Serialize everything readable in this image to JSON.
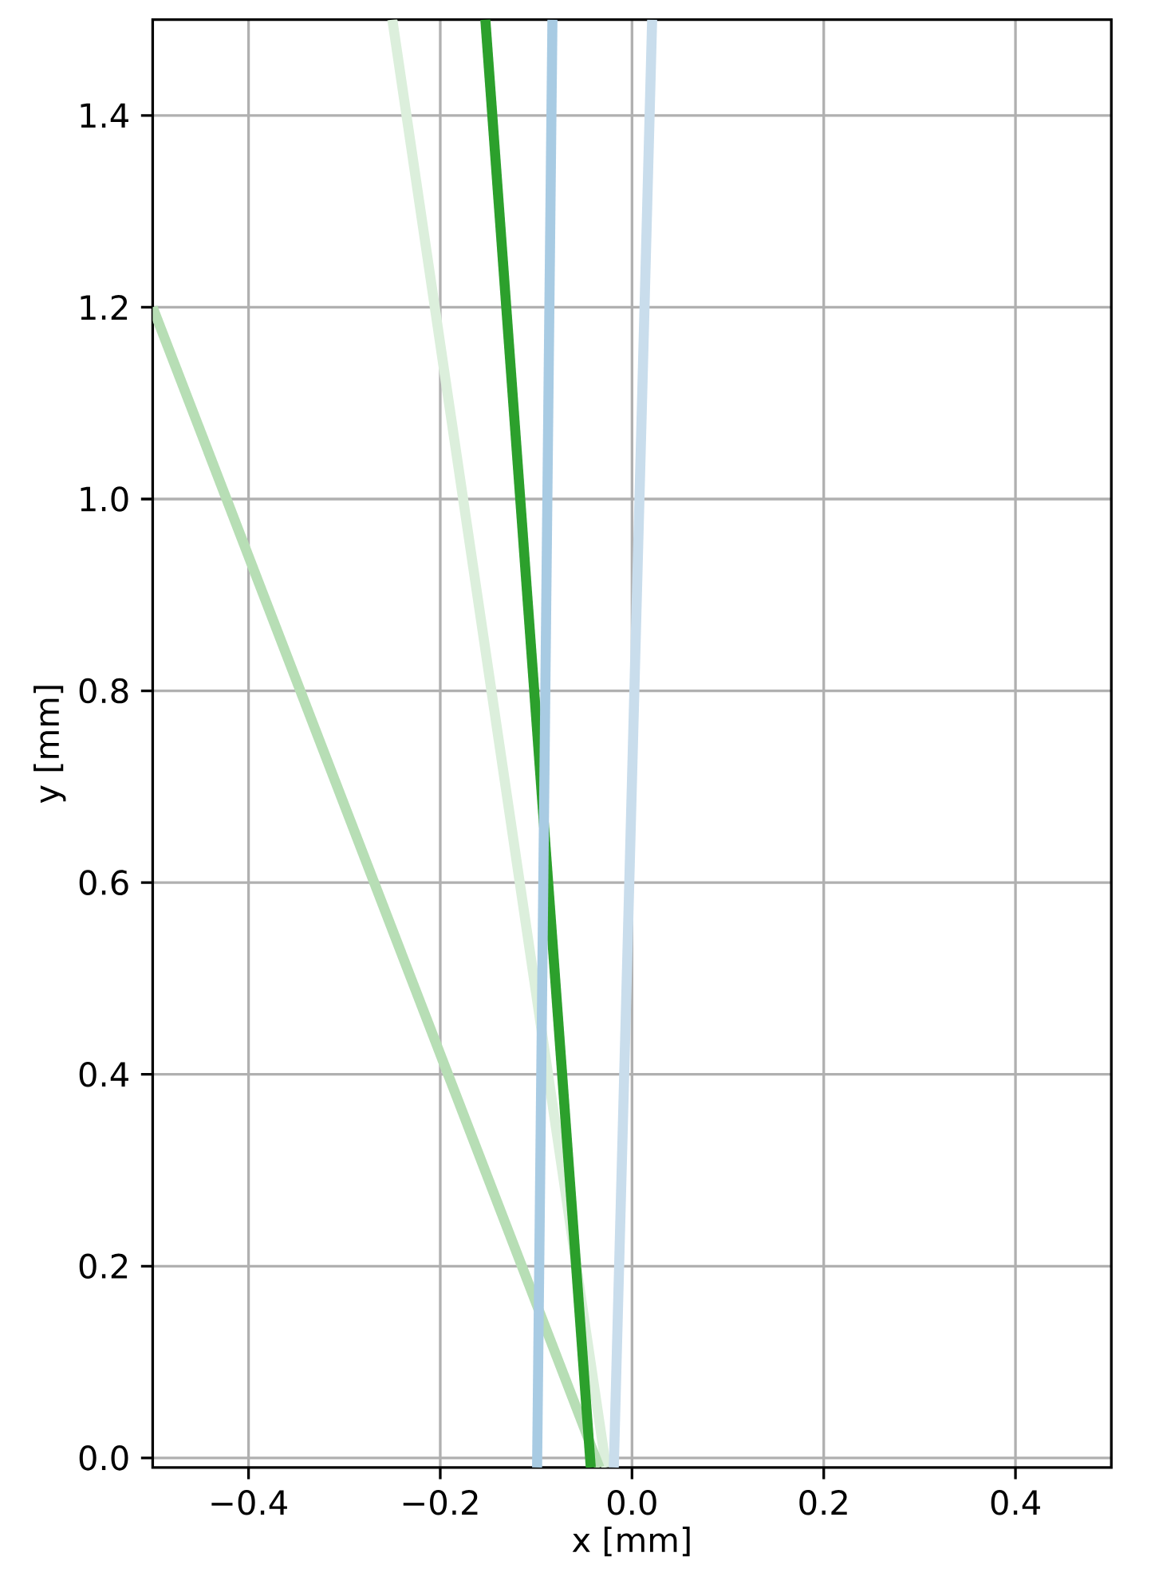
{
  "chart_data": {
    "type": "line",
    "xlabel": "x [mm]",
    "ylabel": "y [mm]",
    "xlim": [
      -0.5,
      0.5
    ],
    "ylim": [
      -0.01,
      1.5
    ],
    "xticks": [
      {
        "value": -0.4,
        "label": "−0.4"
      },
      {
        "value": -0.2,
        "label": "−0.2"
      },
      {
        "value": 0,
        "label": "0.0"
      },
      0.2,
      0.4
    ],
    "yticks": [
      {
        "value": 0,
        "label": "0.0"
      },
      0.2,
      0.4,
      0.6,
      0.8,
      {
        "value": 1.0,
        "label": "1.0"
      },
      1.2,
      1.4
    ],
    "grid": true,
    "line_style": "solid",
    "series": [
      {
        "color": "#dcefdc",
        "x": [
          -0.25,
          -0.027
        ],
        "values": [
          1.5,
          -0.01
        ]
      },
      {
        "color": "#b7deb5",
        "x": [
          -0.5,
          -0.034
        ],
        "values": [
          1.2,
          -0.01
        ]
      },
      {
        "color": "#2ca02c",
        "x": [
          -0.153,
          -0.043
        ],
        "values": [
          1.5,
          -0.01
        ]
      },
      {
        "color": "#c9ddec",
        "x": [
          -0.019,
          0.021
        ],
        "values": [
          -0.01,
          1.5
        ]
      },
      {
        "color": "#a8cbe3",
        "x": [
          -0.099,
          -0.083
        ],
        "values": [
          -0.01,
          1.5
        ]
      }
    ]
  }
}
